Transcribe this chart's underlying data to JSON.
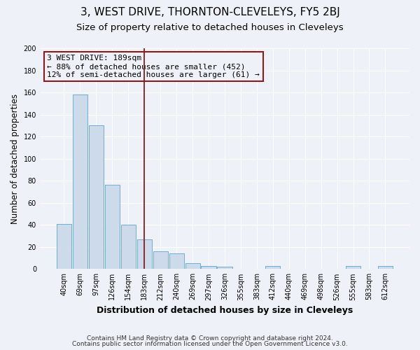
{
  "title": "3, WEST DRIVE, THORNTON-CLEVELEYS, FY5 2BJ",
  "subtitle": "Size of property relative to detached houses in Cleveleys",
  "xlabel": "Distribution of detached houses by size in Cleveleys",
  "ylabel": "Number of detached properties",
  "bar_labels": [
    "40sqm",
    "69sqm",
    "97sqm",
    "126sqm",
    "154sqm",
    "183sqm",
    "212sqm",
    "240sqm",
    "269sqm",
    "297sqm",
    "326sqm",
    "355sqm",
    "383sqm",
    "412sqm",
    "440sqm",
    "469sqm",
    "498sqm",
    "526sqm",
    "555sqm",
    "583sqm",
    "612sqm"
  ],
  "bar_heights": [
    41,
    158,
    130,
    76,
    40,
    27,
    16,
    14,
    5,
    3,
    2,
    0,
    0,
    3,
    0,
    0,
    0,
    0,
    3,
    0,
    3
  ],
  "bar_color": "#ccdaea",
  "bar_edge_color": "#6baed6",
  "vline_x": 5,
  "vline_color": "#8b1a1a",
  "annotation_title": "3 WEST DRIVE: 189sqm",
  "annotation_line1": "← 88% of detached houses are smaller (452)",
  "annotation_line2": "12% of semi-detached houses are larger (61) →",
  "annotation_box_edge": "#8b1a1a",
  "ylim": [
    0,
    200
  ],
  "yticks": [
    0,
    20,
    40,
    60,
    80,
    100,
    120,
    140,
    160,
    180,
    200
  ],
  "footer1": "Contains HM Land Registry data © Crown copyright and database right 2024.",
  "footer2": "Contains public sector information licensed under the Open Government Licence v3.0.",
  "background_color": "#eef2f8",
  "grid_color": "#ffffff",
  "title_fontsize": 11,
  "subtitle_fontsize": 9.5,
  "xlabel_fontsize": 9,
  "ylabel_fontsize": 8.5,
  "tick_fontsize": 7,
  "annotation_fontsize": 8,
  "footer_fontsize": 6.5
}
